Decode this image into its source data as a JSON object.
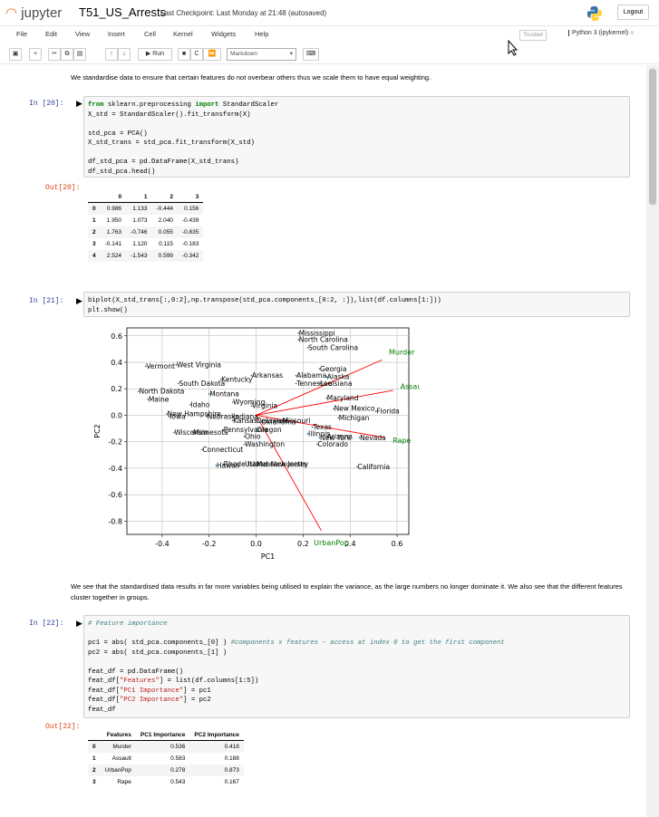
{
  "header": {
    "logo_text": "jupyter",
    "notebook_title": "T51_US_Arrests",
    "checkpoint": "Last Checkpoint: Last Monday at 21:48  (autosaved)",
    "logout_label": "Logout"
  },
  "menu": {
    "items": [
      "File",
      "Edit",
      "View",
      "Insert",
      "Cell",
      "Kernel",
      "Widgets",
      "Help"
    ],
    "trusted_label": "Trusted",
    "kernel_label": "Python 3 (ipykernel)"
  },
  "toolbar": {
    "run_label": "Run",
    "cell_type": "Markdown",
    "icons": [
      "save-icon",
      "add-cell-icon",
      "cut-icon",
      "copy-icon",
      "paste-icon",
      "move-up-icon",
      "move-down-icon",
      "run-icon",
      "stop-icon",
      "restart-icon",
      "fast-forward-icon",
      "keyboard-icon"
    ]
  },
  "cells": {
    "md1": "We standardise data to ensure that certain features do not overbear others thus we scale them to have equal weighting.",
    "c20_prompt": "In [20]:",
    "c20_out_prompt": "Out[20]:",
    "c20_code": [
      [
        "kw",
        "from"
      ],
      [
        "",
        " sklearn.preprocessing "
      ],
      [
        "kw",
        "import"
      ],
      [
        "",
        " StandardScaler\nX_std = StandardScaler().fit_transform(X)\n\nstd_pca = PCA()\nX_std_trans = std_pca.fit_transform(X_std)\n\ndf_std_pca = pd.DataFrame(X_std_trans)\ndf_std_pca.head()"
      ]
    ],
    "c20_table": {
      "columns": [
        "",
        "0",
        "1",
        "2",
        "3"
      ],
      "rows": [
        [
          "0",
          "0.986",
          "1.133",
          "-0.444",
          "0.156"
        ],
        [
          "1",
          "1.950",
          "1.073",
          "2.040",
          "-0.439"
        ],
        [
          "2",
          "1.763",
          "-0.746",
          "0.055",
          "-0.835"
        ],
        [
          "3",
          "-0.141",
          "1.120",
          "0.115",
          "-0.183"
        ],
        [
          "4",
          "2.524",
          "-1.543",
          "0.599",
          "-0.342"
        ]
      ]
    },
    "c21_prompt": "In [21]:",
    "c21_code": "biplot(X_std_trans[:,0:2],np.transpose(std_pca.components_[0:2, :]),list(df.columns[1:]))\nplt.show()",
    "md2": "We see that the standardised data results in far more variables being utilised to explain the variance, as the large numbers no longer dominate it. We also see that the different features cluster together in groups.",
    "c22_prompt": "In [22]:",
    "c22_out_prompt": "Out[22]:",
    "c22_code": [
      [
        "cm",
        "# Feature importance"
      ],
      [
        "",
        "\n\npc1 = abs( std_pca.components_[0] ) "
      ],
      [
        "cm",
        "#components x features - access at index 0 to get the first component"
      ],
      [
        "",
        "\npc2 = abs( std_pca.components_[1] )\n\nfeat_df = pd.DataFrame()\nfeat_df["
      ],
      [
        "st",
        "\"Features\""
      ],
      [
        "",
        "] = list(df.columns[1:5])\nfeat_df["
      ],
      [
        "st",
        "\"PC1 Importance\""
      ],
      [
        "",
        "] = pc1\nfeat_df["
      ],
      [
        "st",
        "\"PC2 Importance\""
      ],
      [
        "",
        "] = pc2\nfeat_df"
      ]
    ],
    "c22_table": {
      "columns": [
        "",
        "Features",
        "PC1 Importance",
        "PC2 Importance"
      ],
      "rows": [
        [
          "0",
          "Murder",
          "0.536",
          "0.418"
        ],
        [
          "1",
          "Assault",
          "0.583",
          "0.188"
        ],
        [
          "2",
          "UrbanPop",
          "0.278",
          "0.873"
        ],
        [
          "3",
          "Rape",
          "0.543",
          "0.167"
        ]
      ]
    }
  },
  "chart_data": {
    "type": "scatter",
    "xlabel": "PC1",
    "ylabel": "PC2",
    "xlim": [
      -0.55,
      0.65
    ],
    "ylim": [
      -0.9,
      0.66
    ],
    "xticks": [
      -0.4,
      -0.2,
      0.0,
      0.2,
      0.4,
      0.6
    ],
    "yticks": [
      0.6,
      0.4,
      0.2,
      0.0,
      -0.2,
      -0.4,
      -0.6,
      -0.8
    ],
    "grid": true,
    "arrow_color": "#ff0000",
    "label_color": "#008000",
    "arrows": [
      {
        "name": "Murder",
        "x": 0.536,
        "y": 0.418,
        "label_x": 0.62,
        "label_y": 0.48
      },
      {
        "name": "Assault",
        "x": 0.583,
        "y": 0.188,
        "label_x": 0.67,
        "label_y": 0.22
      },
      {
        "name": "UrbanPop",
        "x": 0.278,
        "y": -0.873,
        "label_x": 0.32,
        "label_y": -0.96
      },
      {
        "name": "Rape",
        "x": 0.543,
        "y": -0.167,
        "label_x": 0.62,
        "label_y": -0.19
      }
    ],
    "points": [
      {
        "name": "Mississippi",
        "x": 0.18,
        "y": 0.62
      },
      {
        "name": "North Carolina",
        "x": 0.18,
        "y": 0.57
      },
      {
        "name": "South Carolina",
        "x": 0.22,
        "y": 0.51
      },
      {
        "name": "Vermont",
        "x": -0.47,
        "y": 0.37
      },
      {
        "name": "West Virginia",
        "x": -0.34,
        "y": 0.38
      },
      {
        "name": "Georgia",
        "x": 0.27,
        "y": 0.35
      },
      {
        "name": "Arkansas",
        "x": -0.02,
        "y": 0.3
      },
      {
        "name": "Alabama",
        "x": 0.17,
        "y": 0.3
      },
      {
        "name": "Alaska",
        "x": 0.3,
        "y": 0.29
      },
      {
        "name": "Kentucky",
        "x": -0.15,
        "y": 0.27
      },
      {
        "name": "Tennessee",
        "x": 0.17,
        "y": 0.24
      },
      {
        "name": "Louisiana",
        "x": 0.27,
        "y": 0.24
      },
      {
        "name": "South Dakota",
        "x": -0.33,
        "y": 0.24
      },
      {
        "name": "North Dakota",
        "x": -0.5,
        "y": 0.18
      },
      {
        "name": "Montana",
        "x": -0.2,
        "y": 0.16
      },
      {
        "name": "Maryland",
        "x": 0.3,
        "y": 0.13
      },
      {
        "name": "Maine",
        "x": -0.46,
        "y": 0.12
      },
      {
        "name": "Idaho",
        "x": -0.28,
        "y": 0.08
      },
      {
        "name": "Wyoming",
        "x": -0.1,
        "y": 0.1
      },
      {
        "name": "Virginia",
        "x": -0.02,
        "y": 0.07
      },
      {
        "name": "New Mexico",
        "x": 0.33,
        "y": 0.05
      },
      {
        "name": "Florida",
        "x": 0.51,
        "y": 0.03
      },
      {
        "name": "New Hampshire",
        "x": -0.38,
        "y": 0.01
      },
      {
        "name": "Iowa",
        "x": -0.37,
        "y": -0.01
      },
      {
        "name": "Indiana",
        "x": -0.1,
        "y": -0.01
      },
      {
        "name": "Nebraska",
        "x": -0.21,
        "y": -0.01
      },
      {
        "name": "Kansas",
        "x": -0.1,
        "y": -0.04
      },
      {
        "name": "Delaware",
        "x": 0.0,
        "y": -0.04
      },
      {
        "name": "Oklahoma",
        "x": 0.02,
        "y": -0.05
      },
      {
        "name": "Missouri",
        "x": 0.11,
        "y": -0.04
      },
      {
        "name": "Michigan",
        "x": 0.35,
        "y": -0.02
      },
      {
        "name": "Texas",
        "x": 0.24,
        "y": -0.09
      },
      {
        "name": "Pennsylvania",
        "x": -0.14,
        "y": -0.11
      },
      {
        "name": "Oregon",
        "x": 0.0,
        "y": -0.11
      },
      {
        "name": "Wisconsin",
        "x": -0.35,
        "y": -0.13
      },
      {
        "name": "Minnesota",
        "x": -0.27,
        "y": -0.13
      },
      {
        "name": "Illinois",
        "x": 0.22,
        "y": -0.14
      },
      {
        "name": "Arizona",
        "x": 0.3,
        "y": -0.16
      },
      {
        "name": "New York",
        "x": 0.27,
        "y": -0.17
      },
      {
        "name": "Nevada",
        "x": 0.44,
        "y": -0.17
      },
      {
        "name": "Ohio",
        "x": -0.05,
        "y": -0.16
      },
      {
        "name": "Colorado",
        "x": 0.26,
        "y": -0.22
      },
      {
        "name": "Washington",
        "x": -0.05,
        "y": -0.22
      },
      {
        "name": "Connecticut",
        "x": -0.23,
        "y": -0.26
      },
      {
        "name": "Rhode Island",
        "x": -0.14,
        "y": -0.37
      },
      {
        "name": "Utah",
        "x": -0.05,
        "y": -0.37
      },
      {
        "name": "Massachusetts",
        "x": 0.0,
        "y": -0.37
      },
      {
        "name": "New Jersey",
        "x": 0.06,
        "y": -0.37
      },
      {
        "name": "Hawaii",
        "x": -0.17,
        "y": -0.38
      },
      {
        "name": "California",
        "x": 0.43,
        "y": -0.39
      }
    ]
  }
}
